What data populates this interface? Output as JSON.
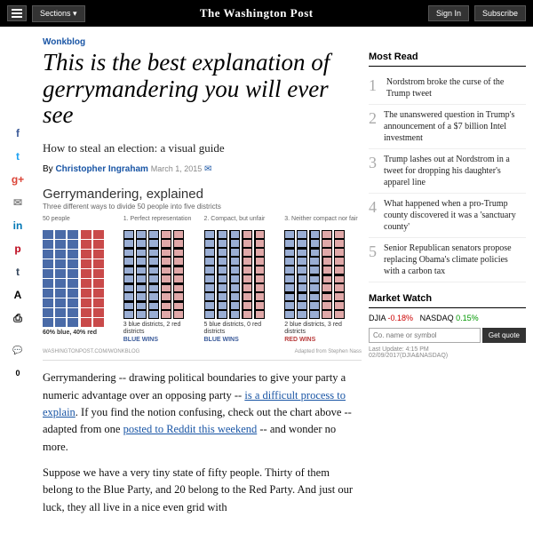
{
  "topbar": {
    "sections_label": "Sections",
    "masthead": "The Washington Post",
    "signin_label": "Sign In",
    "subscribe_label": "Subscribe"
  },
  "article": {
    "section": "Wonkblog",
    "headline": "This is the best explanation of gerrymandering you will ever see",
    "subhead": "How to steal an election: a visual guide",
    "byline_prefix": "By ",
    "author": "Christopher Ingraham",
    "date": "March 1, 2015"
  },
  "share": {
    "icons": [
      "f",
      "t",
      "g+",
      "✉",
      "in",
      "p",
      "t",
      "A",
      "⎙"
    ],
    "colors": [
      "#3b5998",
      "#1da1f2",
      "#db4437",
      "#888",
      "#0077b5",
      "#bd081c",
      "#35465c",
      "#000",
      "#000"
    ],
    "comment_count": "0"
  },
  "infographic": {
    "title": "Gerrymandering, explained",
    "subtitle": "Three different ways to divide 50 people into five districts",
    "panel1_label": "50 people",
    "panel2_label": "1. Perfect representation",
    "panel3_label": "2. Compact, but unfair",
    "panel4_label": "3. Neither compact nor fair",
    "panel1_caption": "60% blue, 40% red",
    "panel2_caption1": "3 blue districts, 2 red districts",
    "panel2_caption2": "BLUE WINS",
    "panel3_caption1": "5 blue districts, 0 red districts",
    "panel3_caption2": "BLUE WINS",
    "panel4_caption1": "2 blue districts, 3 red districts",
    "panel4_caption2": "RED WINS",
    "footer_left": "WASHINGTONPOST.COM/WONKBLOG",
    "footer_right": "Adapted from Stephen Nass",
    "colors": {
      "blue": "#4a6ba8",
      "red": "#c94a4a",
      "blue_light": "#9aaed4",
      "red_light": "#e0a8a8",
      "blue_text": "#3a5a9a",
      "red_text": "#b83a3a"
    },
    "grid": {
      "cols": 5,
      "rows": 10,
      "blue_cols": 3,
      "red_cols": 2
    }
  },
  "body": {
    "p1_a": "Gerrymandering -- drawing political boundaries to give your party a numeric advantage over an opposing party -- ",
    "p1_link1": "is a difficult process to explain",
    "p1_b": ". If you find the notion confusing, check out the chart above --  adapted from one ",
    "p1_link2": "posted to Reddit this weekend",
    "p1_c": " -- and wonder no more.",
    "p2": "Suppose we have a very tiny state of fifty people. Thirty of them belong to the Blue Party, and 20 belong to the Red Party. And just our luck, they all live in a nice even grid with"
  },
  "most_read": {
    "header": "Most Read",
    "items": [
      "Nordstrom broke the curse of the Trump tweet",
      "The unanswered question in Trump's announcement of a $7 billion Intel investment",
      "Trump lashes out at Nordstrom in a tweet for dropping his daughter's apparel line",
      "What happened when a pro-Trump county discovered it was a 'sanctuary county'",
      "Senior Republican senators propose replacing Obama's climate policies with a carbon tax"
    ]
  },
  "market_watch": {
    "header": "Market Watch",
    "djia_label": "DJIA",
    "djia_val": "-0.18%",
    "nasdaq_label": "NASDAQ",
    "nasdaq_val": "0.15%",
    "search_placeholder": "Co. name or symbol",
    "get_quote": "Get quote",
    "footer1": "Last Update: 4:15 PM",
    "footer2": "02/09/2017(DJIA&NASDAQ)"
  }
}
